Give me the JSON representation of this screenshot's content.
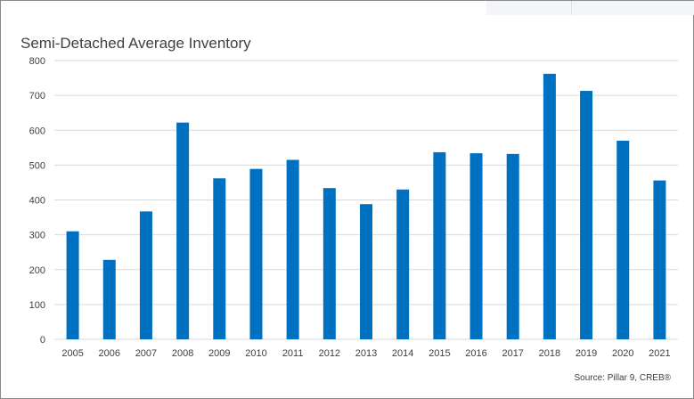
{
  "chart_data": {
    "type": "bar",
    "title": "Semi-Detached Average Inventory",
    "categories": [
      "2005",
      "2006",
      "2007",
      "2008",
      "2009",
      "2010",
      "2011",
      "2012",
      "2013",
      "2014",
      "2015",
      "2016",
      "2017",
      "2018",
      "2019",
      "2020",
      "2021"
    ],
    "values": [
      310,
      228,
      367,
      622,
      462,
      489,
      515,
      434,
      388,
      430,
      537,
      534,
      532,
      762,
      713,
      570,
      456
    ],
    "ylim": [
      0,
      800
    ],
    "yticks": [
      0,
      100,
      200,
      300,
      400,
      500,
      600,
      700,
      800
    ],
    "grid": true,
    "legend": "none",
    "source": "Source: Pillar 9, CREB®",
    "bar_color": "#0070c0"
  }
}
